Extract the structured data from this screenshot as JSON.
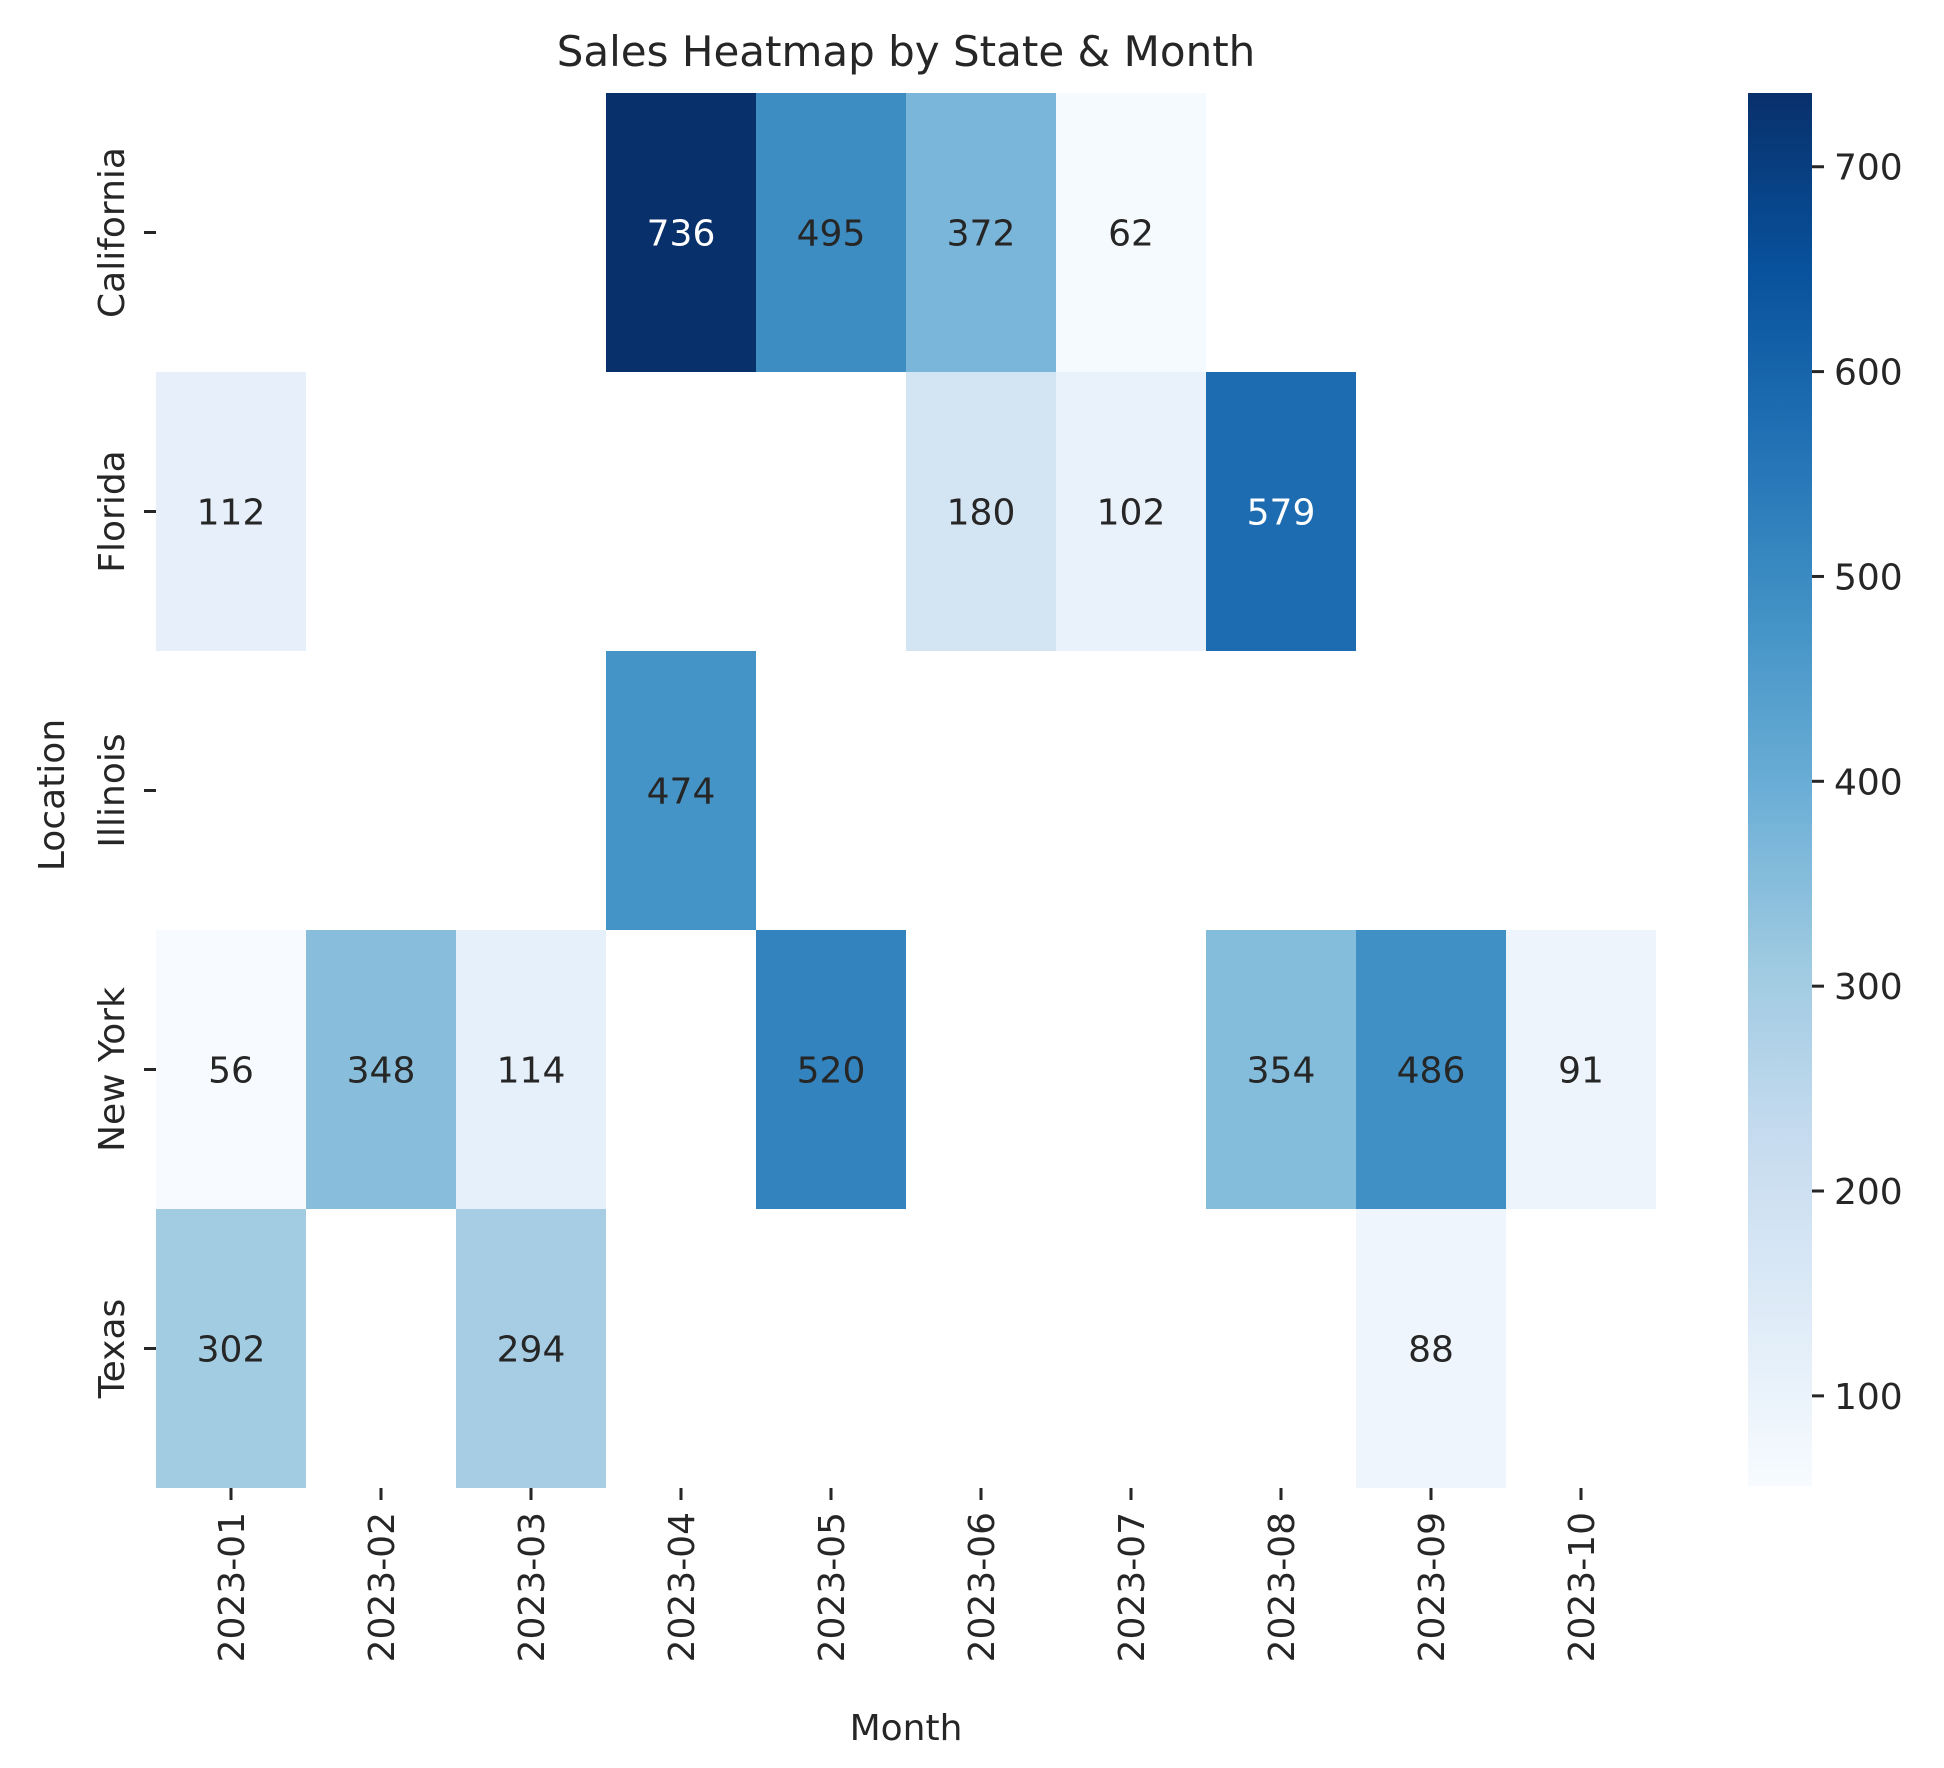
{
  "chart_data": {
    "type": "heatmap",
    "title": "Sales Heatmap by State & Month",
    "xlabel": "Month",
    "ylabel": "Location",
    "x": [
      "2023-01",
      "2023-02",
      "2023-03",
      "2023-04",
      "2023-05",
      "2023-06",
      "2023-07",
      "2023-08",
      "2023-09",
      "2023-10"
    ],
    "y": [
      "California",
      "Florida",
      "Illinois",
      "New York",
      "Texas"
    ],
    "values": [
      [
        null,
        null,
        null,
        736,
        495,
        372,
        62,
        null,
        null,
        null
      ],
      [
        112,
        null,
        null,
        null,
        null,
        180,
        102,
        579,
        null,
        null
      ],
      [
        null,
        null,
        null,
        474,
        null,
        null,
        null,
        null,
        null,
        null
      ],
      [
        56,
        348,
        114,
        null,
        520,
        null,
        null,
        354,
        486,
        91
      ],
      [
        302,
        null,
        294,
        null,
        null,
        null,
        null,
        null,
        88,
        null
      ]
    ],
    "colormap": "Blues",
    "colorbar": {
      "vmin": 56,
      "vmax": 736,
      "ticks": [
        100,
        200,
        300,
        400,
        500,
        600,
        700
      ]
    },
    "annotations": true,
    "grid": false,
    "legend": "none"
  }
}
